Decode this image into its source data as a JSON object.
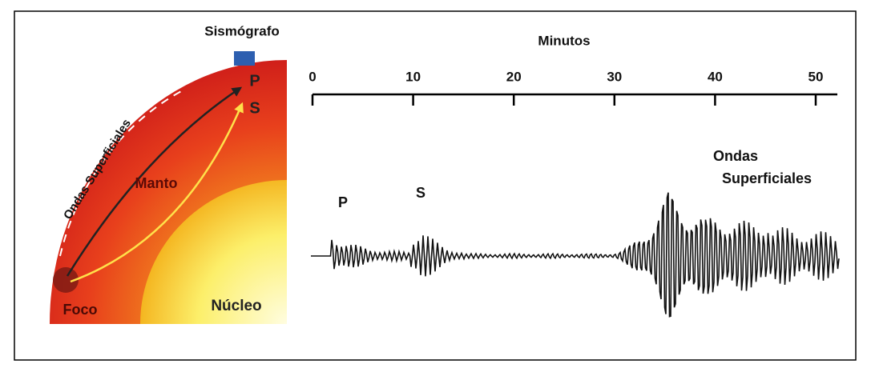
{
  "seismograph_label": "Sismógrafo",
  "earth_section": {
    "surface_waves": "Ondas Superficiales",
    "mantle": "Manto",
    "core": "Núcleo",
    "focus": "Foco",
    "p_wave": "P",
    "s_wave": "S"
  },
  "seismogram": {
    "axis_title": "Minutos",
    "ticks": [
      0,
      10,
      20,
      30,
      40,
      50
    ],
    "p_arrival": "P",
    "s_arrival": "S",
    "surface_waves": [
      "Ondas",
      "Superficiales"
    ]
  }
}
